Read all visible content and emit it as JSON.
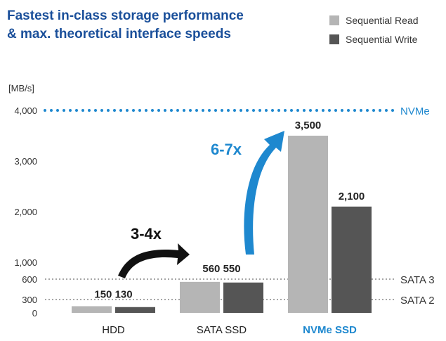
{
  "title_line1": "Fastest in-class storage performance",
  "title_line2": "& max. theoretical interface speeds",
  "colors": {
    "title": "#1a4f9a",
    "read": "#b5b5b5",
    "write": "#555555",
    "nvme_accent": "#1e88cf",
    "text": "#222222",
    "axis_text": "#333333",
    "sata_line": "#888888",
    "arrow_dark": "#111111"
  },
  "chart_data": {
    "type": "bar",
    "unit_label": "[MB/s]",
    "categories": [
      "HDD",
      "SATA SSD",
      "NVMe SSD"
    ],
    "series": [
      {
        "name": "Sequential Read",
        "values": [
          150,
          560,
          3500
        ]
      },
      {
        "name": "Sequential Write",
        "values": [
          130,
          550,
          2100
        ]
      }
    ],
    "data_labels": {
      "pair": [
        "150 130",
        "560 550"
      ],
      "nvme_read": "3,500",
      "nvme_write": "2,100"
    },
    "ylim": [
      0,
      4000
    ],
    "yticks": [
      {
        "value": 0,
        "label": "0"
      },
      {
        "value": 300,
        "label": "300"
      },
      {
        "value": 600,
        "label": "600"
      },
      {
        "value": 1000,
        "label": "1,000"
      },
      {
        "value": 2000,
        "label": "2,000"
      },
      {
        "value": 3000,
        "label": "3,000"
      },
      {
        "value": 4000,
        "label": "4,000"
      }
    ],
    "reference_lines": [
      {
        "label": "NVMe",
        "value": 4000
      },
      {
        "label": "SATA 3",
        "value": 600
      },
      {
        "label": "SATA 2",
        "value": 300
      }
    ],
    "annotations": {
      "hdd_to_sata": "3-4x",
      "sata_to_nvme": "6-7x"
    },
    "legend_position": "top-right",
    "grid": false
  }
}
